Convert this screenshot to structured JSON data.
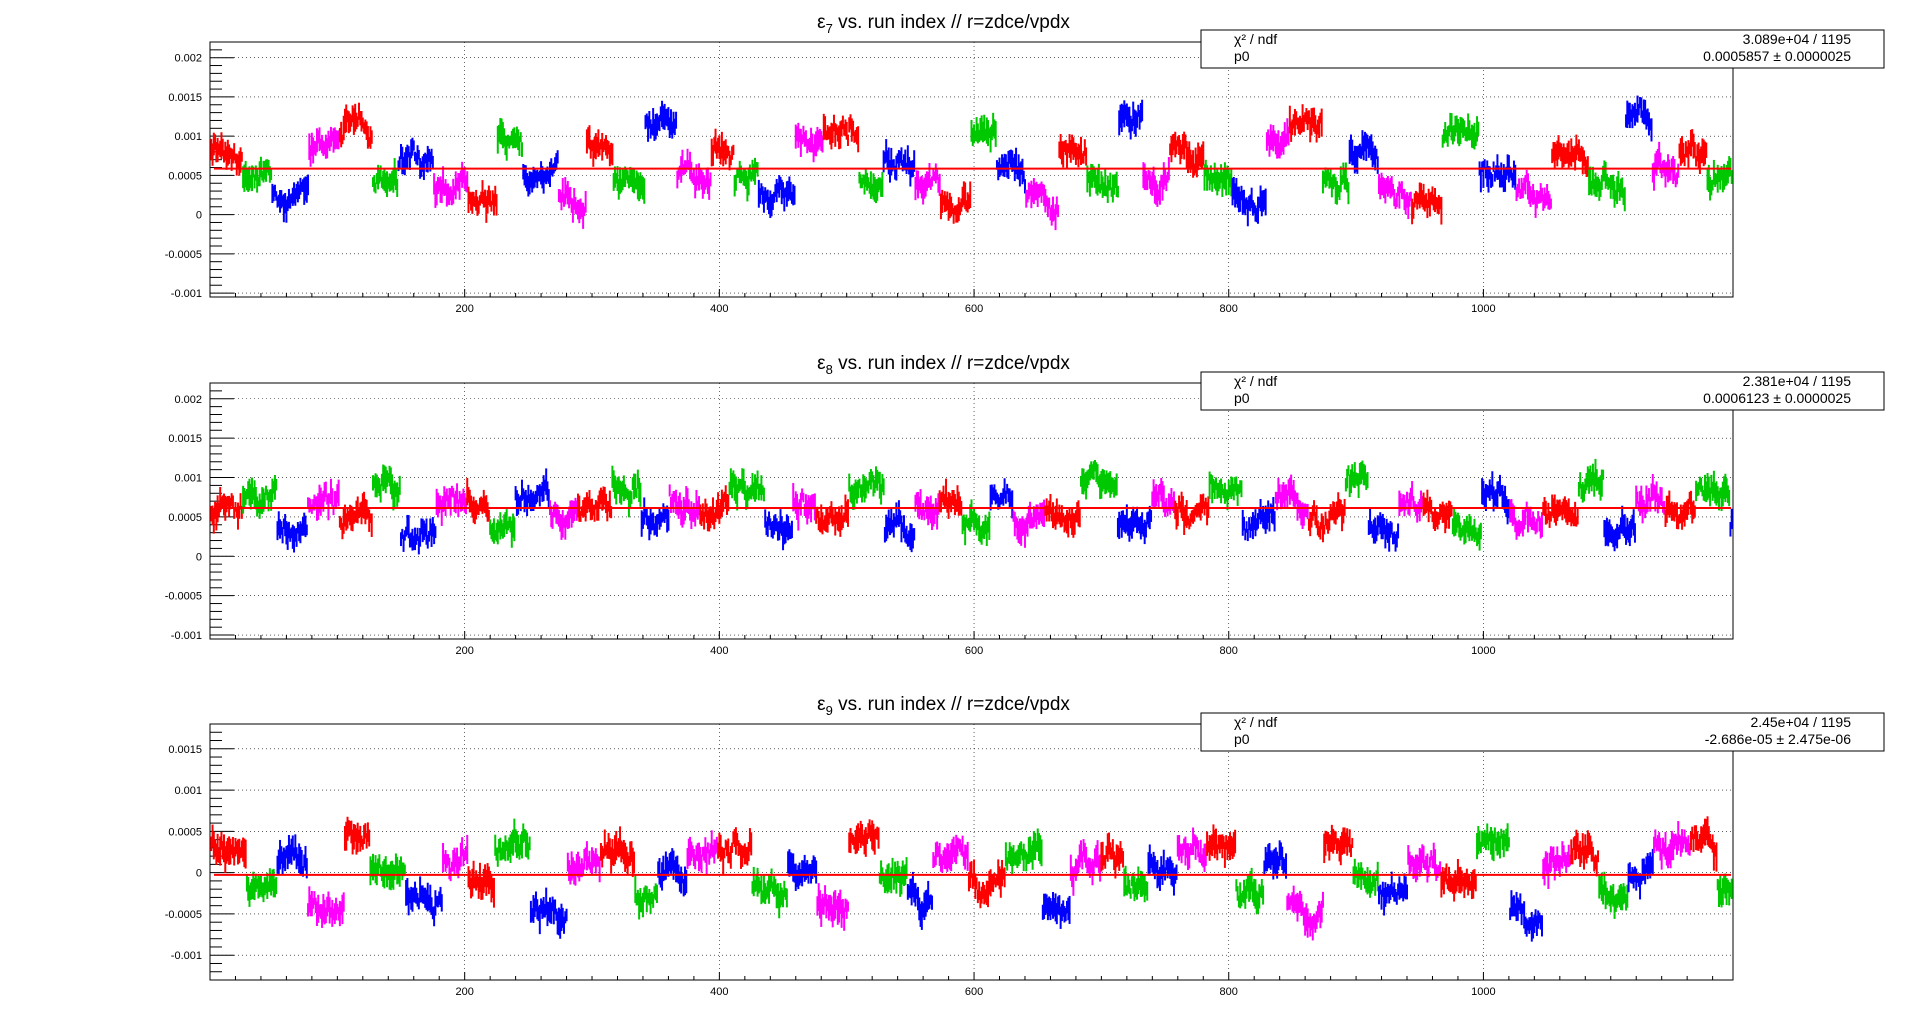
{
  "chart_data": [
    {
      "type": "scatter",
      "title": "ε_7 vs. run index // r=zdce/vpdx",
      "title_symbol": "ε",
      "title_sub": "7",
      "title_rest": " vs. run index // r=zdce/vpdx",
      "xlim": [
        0,
        1196
      ],
      "ylim": [
        -0.00105,
        0.0022
      ],
      "xticks": [
        200,
        400,
        600,
        800,
        1000
      ],
      "yticks": [
        -0.001,
        -0.0005,
        0,
        0.0005,
        0.001,
        0.0015,
        0.002
      ],
      "ytick_labels": [
        "-0.001",
        "-0.0005",
        "0",
        "0.0005",
        "0.001",
        "0.0015",
        "0.002"
      ],
      "grid": true,
      "series_colors": [
        "#ff0000",
        "#00c800",
        "#0000ff",
        "#ff00ff"
      ],
      "fit": {
        "name": "pol0",
        "value": 0.0005857,
        "color": "#ff0000"
      },
      "stats": {
        "row1_label": "χ² / ndf",
        "row1_value": "3.089e+04 / 1195",
        "row2_label": "p0",
        "row2_value": "0.0005857 ± 0.0000025"
      },
      "points_note_x_range": [
        0,
        1196
      ],
      "level_pattern": [
        0.0008,
        0.0005,
        0.0002,
        0.0009,
        0.0011,
        0.0004,
        0.0007,
        0.0003,
        0.0001,
        0.001,
        0.0006,
        0.0002,
        0.0008,
        0.0004,
        0.0012,
        0.0005
      ]
    },
    {
      "type": "scatter",
      "title": "ε_8 vs. run index // r=zdce/vpdx",
      "title_symbol": "ε",
      "title_sub": "8",
      "title_rest": " vs. run index // r=zdce/vpdx",
      "xlim": [
        0,
        1196
      ],
      "ylim": [
        -0.00105,
        0.0022
      ],
      "xticks": [
        200,
        400,
        600,
        800,
        1000
      ],
      "yticks": [
        -0.001,
        -0.0005,
        0,
        0.0005,
        0.001,
        0.0015,
        0.002
      ],
      "ytick_labels": [
        "-0.001",
        "-0.0005",
        "0",
        "0.0005",
        "0.001",
        "0.0015",
        "0.002"
      ],
      "grid": true,
      "series_colors": [
        "#ff0000",
        "#00c800",
        "#0000ff",
        "#ff00ff"
      ],
      "fit": {
        "name": "pol0",
        "value": 0.0006123,
        "color": "#ff0000"
      },
      "stats": {
        "row1_label": "χ² / ndf",
        "row1_value": "2.381e+04 / 1195",
        "row2_label": "p0",
        "row2_value": "0.0006123 ± 0.0000025"
      },
      "level_pattern": [
        0.0006,
        0.0008,
        0.0004,
        0.0007,
        0.0005,
        0.0009,
        0.0003,
        0.0006,
        0.0007,
        0.0004,
        0.0008,
        0.0005,
        0.0006,
        0.0009,
        0.0004,
        0.0007
      ]
    },
    {
      "type": "scatter",
      "title": "ε_9 vs. run index // r=zdce/vpdx",
      "title_symbol": "ε",
      "title_sub": "9",
      "title_rest": " vs. run index // r=zdce/vpdx",
      "xlim": [
        0,
        1196
      ],
      "ylim": [
        -0.0013,
        0.0018
      ],
      "xticks": [
        200,
        400,
        600,
        800,
        1000
      ],
      "yticks": [
        -0.001,
        -0.0005,
        0,
        0.0005,
        0.001,
        0.0015
      ],
      "ytick_labels": [
        "-0.001",
        "-0.0005",
        "0",
        "0.0005",
        "0.001",
        "0.0015"
      ],
      "grid": true,
      "series_colors": [
        "#ff0000",
        "#00c800",
        "#0000ff",
        "#ff00ff"
      ],
      "fit": {
        "name": "pol0",
        "value": -2.686e-05,
        "color": "#ff0000"
      },
      "stats": {
        "row1_label": "χ² / ndf",
        "row1_value": "2.45e+04 / 1195",
        "row2_label": "p0",
        "row2_value": "-2.686e-05 ± 2.475e-06"
      },
      "level_pattern": [
        0.0003,
        -0.0002,
        0.0001,
        -0.0004,
        0.0004,
        0.0,
        -0.0003,
        0.0002,
        -0.0001,
        0.0003,
        -0.0005,
        0.0001,
        0.0002,
        -0.0002,
        0.0,
        0.0003
      ]
    }
  ]
}
